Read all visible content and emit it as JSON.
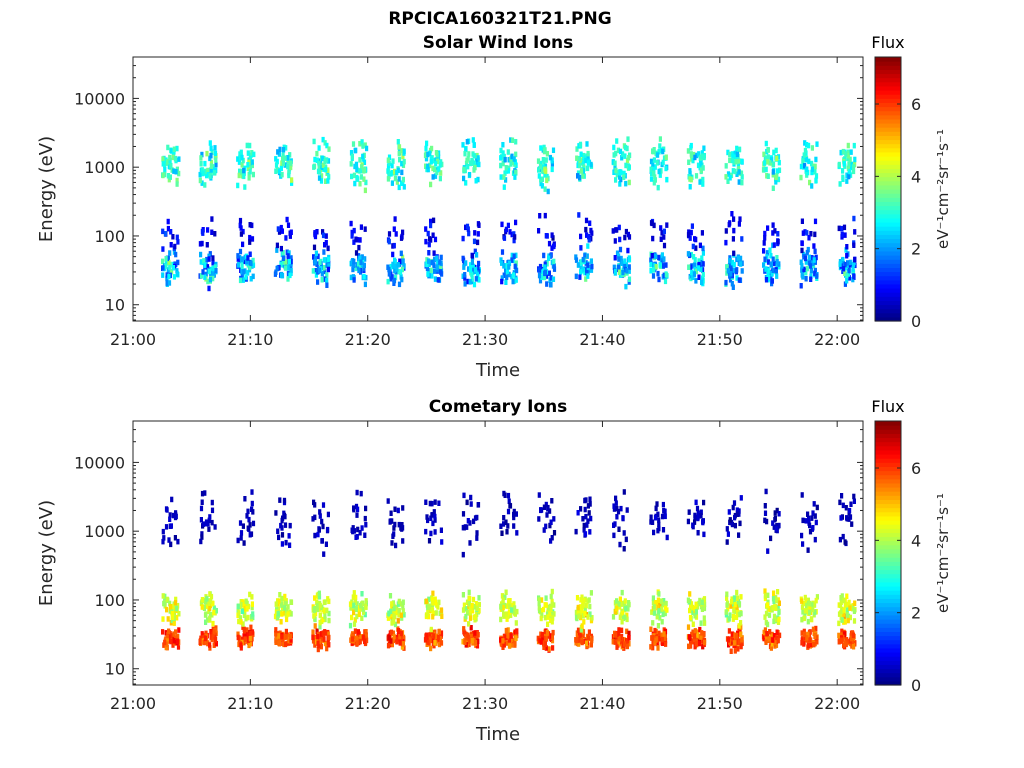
{
  "figure": {
    "title": "RPCICA160321T21.PNG"
  },
  "chart_data": [
    {
      "type": "heatmap",
      "title": "Solar Wind Ions",
      "xlabel": "Time",
      "ylabel": "Energy (eV)",
      "x_ticks": [
        "21:00",
        "21:10",
        "21:20",
        "21:30",
        "21:40",
        "21:50",
        "22:00"
      ],
      "x_range_minutes": [
        0,
        62.2
      ],
      "y_ticks": [
        10,
        100,
        1000,
        10000
      ],
      "y_tick_labels": [
        "10",
        "100",
        "1000",
        "10000"
      ],
      "y_range": [
        5.8,
        40000
      ],
      "y_scale": "log",
      "colorbar": {
        "title": "Flux",
        "label": "eV⁻¹cm⁻²sr⁻¹s⁻¹",
        "range": [
          0,
          7.3
        ],
        "ticks": [
          "0",
          "2",
          "4",
          "6"
        ],
        "colormap": "jet"
      },
      "scan_period_minutes": 3.2,
      "scan_first_minute": 2.8,
      "scan_count": 19,
      "bands": [
        {
          "name": "high",
          "energy_center_eV": 1200,
          "energy_spread_dex": 0.28,
          "flux_mean": 3.0,
          "flux_spread": 0.9,
          "cells_per_scan": 40
        },
        {
          "name": "low",
          "energy_center_eV": 38,
          "energy_spread_dex": 0.22,
          "flux_mean": 2.2,
          "flux_spread": 1.4,
          "cells_per_scan": 40
        },
        {
          "name": "mid",
          "energy_center_eV": 110,
          "energy_spread_dex": 0.25,
          "flux_mean": 0.8,
          "flux_spread": 0.6,
          "cells_per_scan": 12
        }
      ]
    },
    {
      "type": "heatmap",
      "title": "Cometary Ions",
      "xlabel": "Time",
      "ylabel": "Energy (eV)",
      "x_ticks": [
        "21:00",
        "21:10",
        "21:20",
        "21:30",
        "21:40",
        "21:50",
        "22:00"
      ],
      "x_range_minutes": [
        0,
        62.2
      ],
      "y_ticks": [
        10,
        100,
        1000,
        10000
      ],
      "y_tick_labels": [
        "10",
        "100",
        "1000",
        "10000"
      ],
      "y_range": [
        5.8,
        40000
      ],
      "y_scale": "log",
      "colorbar": {
        "title": "Flux",
        "label": "eV⁻¹cm⁻²sr⁻¹s⁻¹",
        "range": [
          0,
          7.3
        ],
        "ticks": [
          "0",
          "2",
          "4",
          "6"
        ],
        "colormap": "jet"
      },
      "scan_period_minutes": 3.2,
      "scan_first_minute": 2.8,
      "scan_count": 19,
      "bands": [
        {
          "name": "core",
          "energy_center_eV": 30,
          "energy_spread_dex": 0.12,
          "flux_mean": 5.9,
          "flux_spread": 0.7,
          "cells_per_scan": 45
        },
        {
          "name": "upper",
          "energy_center_eV": 80,
          "energy_spread_dex": 0.2,
          "flux_mean": 4.2,
          "flux_spread": 0.8,
          "cells_per_scan": 40
        },
        {
          "name": "sparse-high",
          "energy_center_eV": 1600,
          "energy_spread_dex": 0.35,
          "flux_mean": 0.4,
          "flux_spread": 0.3,
          "cells_per_scan": 20
        }
      ]
    }
  ]
}
